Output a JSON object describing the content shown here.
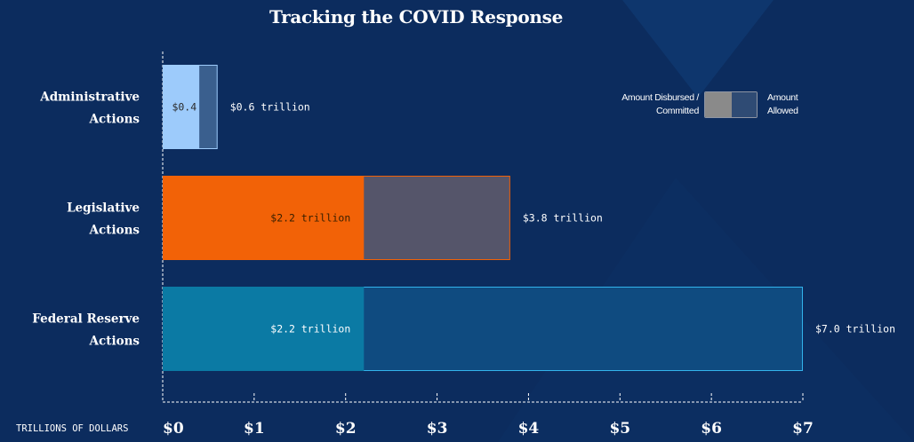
{
  "chart_data": {
    "type": "bar",
    "orientation": "horizontal",
    "stacked_overlay": true,
    "title": "Tracking the COVID Response",
    "xlabel": "TRILLIONS OF DOLLARS",
    "ylabel": "",
    "xlim": [
      0,
      7
    ],
    "x_ticks": [
      0,
      1,
      2,
      3,
      4,
      5,
      6,
      7
    ],
    "x_tick_labels": [
      "$0",
      "$1",
      "$2",
      "$3",
      "$4",
      "$5",
      "$6",
      "$7"
    ],
    "grid": false,
    "legend_position": "top-right",
    "categories": [
      {
        "label_line1": "Administrative",
        "label_line2": "Actions"
      },
      {
        "label_line1": "Legislative",
        "label_line2": "Actions"
      },
      {
        "label_line1": "Federal Reserve",
        "label_line2": "Actions"
      }
    ],
    "series": [
      {
        "name": "Amount Disbursed / Committed",
        "values": [
          0.4,
          2.2,
          2.2
        ],
        "data_labels": [
          "$0.4",
          "$2.2 trillion",
          "$2.2 trillion"
        ]
      },
      {
        "name": "Amount Allowed",
        "values": [
          0.6,
          3.8,
          7.0
        ],
        "data_labels": [
          "$0.6 trillion",
          "$3.8 trillion",
          "$7.0 trillion"
        ]
      }
    ],
    "colors": {
      "disbursed": [
        "#9dcbfb",
        "#f26207",
        "#0b7aa4"
      ],
      "allowed": [
        "#3a5f8e",
        "#55556a",
        "#0f4b80"
      ],
      "allowed_border": [
        "#9dcbfb",
        "#f26207",
        "#33b3ec"
      ],
      "disbursed_label": [
        "#2a2a2a",
        "#3a2000",
        "#ffffff"
      ]
    }
  },
  "legend": {
    "left_label": "Amount Disbursed /\nCommitted",
    "right_label": "Amount\nAllowed"
  }
}
